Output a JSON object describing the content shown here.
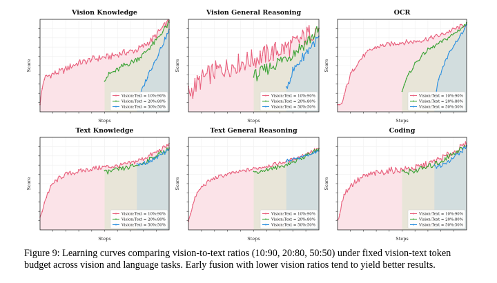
{
  "caption": "Figure 9: Learning curves comparing vision-to-text ratios (10:90, 20:80, 50:50) under fixed vision-text token budget across vision and language tasks. Early fusion with lower vision ratios tend to yield better results.",
  "colors": {
    "r10": "#e8607d",
    "r20": "#3aa335",
    "r50": "#2b8fe0",
    "shade10": "#fbe3e8",
    "shade20": "#e6e4d6",
    "shade50": "#cfdcdf"
  },
  "legend": [
    "Vision:Text = 10%:90%",
    "Vision:Text = 20%:80%",
    "Vision:Text = 50%:50%"
  ],
  "chart_data": [
    {
      "type": "line",
      "title": "Vision Knowledge",
      "xlabel": "Steps",
      "ylabel": "Score",
      "legend_position": "lower-right",
      "grid": true,
      "ylim": [
        0,
        100
      ],
      "series": [
        {
          "name": "Vision:Text = 10%:90%",
          "x": [
            0,
            3,
            8,
            15,
            20,
            25,
            30,
            35,
            40,
            45,
            50,
            55,
            60,
            65,
            70,
            75,
            80,
            85,
            90,
            95,
            100
          ],
          "y": [
            10,
            36,
            40,
            43,
            46,
            50,
            53,
            54,
            57,
            58,
            59,
            60,
            62,
            64,
            65,
            67,
            71,
            76,
            83,
            91,
            98
          ]
        },
        {
          "name": "Vision:Text = 20%:80%",
          "x": [
            50,
            55,
            60,
            65,
            70,
            75,
            80,
            85,
            90,
            95,
            100
          ],
          "y": [
            36,
            42,
            45,
            50,
            53,
            57,
            62,
            70,
            77,
            87,
            96
          ]
        },
        {
          "name": "Vision:Text = 50%:50%",
          "x": [
            75,
            80,
            85,
            90,
            95,
            100
          ],
          "y": [
            9,
            27,
            44,
            58,
            73,
            88
          ]
        }
      ]
    },
    {
      "type": "line",
      "title": "Vision General Reasoning",
      "xlabel": "Steps",
      "ylabel": "Score",
      "legend_position": "lower-right",
      "grid": true,
      "ylim": [
        0,
        100
      ],
      "series": [
        {
          "name": "Vision:Text = 10%:90%",
          "x": [
            0,
            10,
            20,
            30,
            40,
            50,
            60,
            70,
            80,
            90,
            100
          ],
          "y": [
            20,
            35,
            44,
            48,
            53,
            57,
            62,
            67,
            72,
            82,
            92
          ]
        },
        {
          "name": "Vision:Text = 20%:80%",
          "x": [
            50,
            60,
            70,
            80,
            90,
            100
          ],
          "y": [
            38,
            46,
            55,
            63,
            75,
            88
          ]
        },
        {
          "name": "Vision:Text = 50%:50%",
          "x": [
            75,
            80,
            85,
            90,
            95,
            100
          ],
          "y": [
            26,
            44,
            54,
            64,
            73,
            80
          ]
        }
      ]
    },
    {
      "type": "line",
      "title": "OCR",
      "xlabel": "Steps",
      "ylabel": "Score",
      "legend_position": "lower-right",
      "grid": true,
      "ylim": [
        0,
        100
      ],
      "series": [
        {
          "name": "Vision:Text = 10%:90%",
          "x": [
            0,
            3,
            6,
            10,
            15,
            20,
            25,
            30,
            40,
            50,
            60,
            70,
            80,
            90,
            100
          ],
          "y": [
            6,
            7,
            22,
            40,
            52,
            60,
            66,
            70,
            73,
            75,
            76,
            79,
            83,
            89,
            95
          ]
        },
        {
          "name": "Vision:Text = 20%:80%",
          "x": [
            50,
            55,
            60,
            65,
            70,
            80,
            90,
            100
          ],
          "y": [
            24,
            40,
            52,
            60,
            67,
            75,
            84,
            95
          ]
        },
        {
          "name": "Vision:Text = 50%:50%",
          "x": [
            75,
            78,
            82,
            86,
            90,
            95,
            100
          ],
          "y": [
            10,
            34,
            50,
            62,
            72,
            82,
            93
          ]
        }
      ]
    },
    {
      "type": "line",
      "title": "Text Knowledge",
      "xlabel": "Steps",
      "ylabel": "Score",
      "legend_position": "lower-right",
      "grid": true,
      "ylim": [
        0,
        100
      ],
      "series": [
        {
          "name": "Vision:Text = 10%:90%",
          "x": [
            0,
            3,
            6,
            10,
            15,
            20,
            30,
            40,
            50,
            60,
            70,
            80,
            90,
            100
          ],
          "y": [
            12,
            28,
            40,
            50,
            56,
            60,
            63,
            66,
            68,
            69,
            72,
            77,
            84,
            92
          ]
        },
        {
          "name": "Vision:Text = 20%:80%",
          "x": [
            50,
            60,
            70,
            80,
            90,
            100
          ],
          "y": [
            62,
            65,
            68,
            72,
            80,
            88
          ]
        },
        {
          "name": "Vision:Text = 50%:50%",
          "x": [
            75,
            80,
            85,
            90,
            95,
            100
          ],
          "y": [
            70,
            72,
            74,
            78,
            82,
            86
          ]
        }
      ]
    },
    {
      "type": "line",
      "title": "Text General Reasoning",
      "xlabel": "Steps",
      "ylabel": "Score",
      "legend_position": "lower-right",
      "grid": true,
      "ylim": [
        0,
        100
      ],
      "series": [
        {
          "name": "Vision:Text = 10%:90%",
          "x": [
            0,
            3,
            6,
            10,
            15,
            20,
            30,
            40,
            50,
            60,
            70,
            80,
            90,
            100
          ],
          "y": [
            10,
            25,
            38,
            46,
            52,
            56,
            60,
            63,
            66,
            69,
            72,
            76,
            82,
            88
          ]
        },
        {
          "name": "Vision:Text = 20%:80%",
          "x": [
            50,
            60,
            70,
            80,
            90,
            100
          ],
          "y": [
            62,
            65,
            68,
            73,
            80,
            87
          ]
        },
        {
          "name": "Vision:Text = 50%:50%",
          "x": [
            75,
            80,
            85,
            90,
            95,
            100
          ],
          "y": [
            75,
            76,
            78,
            80,
            82,
            86
          ]
        }
      ]
    },
    {
      "type": "line",
      "title": "Coding",
      "xlabel": "Steps",
      "ylabel": "Score",
      "legend_position": "lower-right",
      "grid": true,
      "ylim": [
        0,
        100
      ],
      "series": [
        {
          "name": "Vision:Text = 10%:90%",
          "x": [
            0,
            2,
            5,
            10,
            15,
            20,
            25,
            30,
            40,
            50,
            60,
            70,
            80,
            90,
            100
          ],
          "y": [
            8,
            22,
            38,
            48,
            53,
            57,
            60,
            61,
            64,
            65,
            67,
            71,
            77,
            84,
            93
          ]
        },
        {
          "name": "Vision:Text = 20%:80%",
          "x": [
            50,
            60,
            70,
            80,
            90,
            100
          ],
          "y": [
            62,
            64,
            68,
            74,
            83,
            91
          ]
        },
        {
          "name": "Vision:Text = 50%:50%",
          "x": [
            75,
            80,
            85,
            90,
            95,
            100
          ],
          "y": [
            68,
            70,
            74,
            78,
            84,
            90
          ]
        }
      ]
    }
  ]
}
